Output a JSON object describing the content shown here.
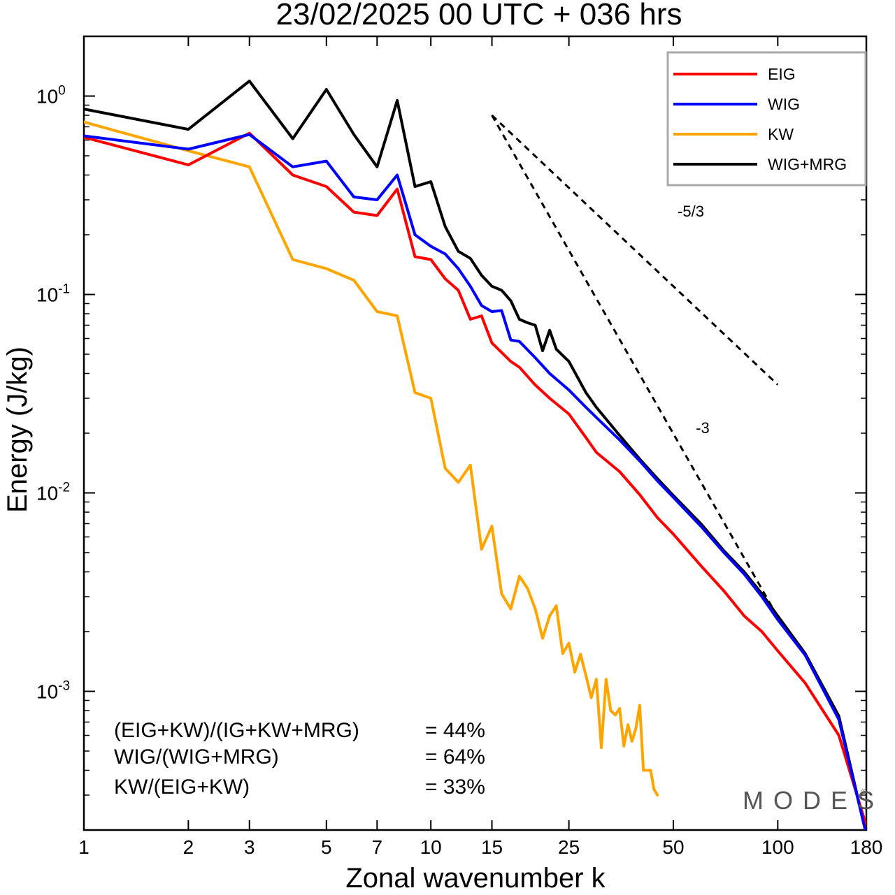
{
  "chart_data": {
    "type": "line",
    "title": "23/02/2025  00 UTC  + 036 hrs",
    "xlabel": "Zonal wavenumber k",
    "ylabel": "Energy (J/kg)",
    "xscale": "log",
    "yscale": "log",
    "xlim": [
      1,
      180
    ],
    "ylim": [
      0.0002,
      2.0
    ],
    "xticks": [
      1,
      2,
      3,
      5,
      7,
      10,
      15,
      25,
      50,
      100,
      180
    ],
    "yticks": [
      {
        "value": 1,
        "base": "10",
        "exp": "0"
      },
      {
        "value": 0.1,
        "base": "10",
        "exp": "-1"
      },
      {
        "value": 0.01,
        "base": "10",
        "exp": "-2"
      },
      {
        "value": 0.001,
        "base": "10",
        "exp": "-3"
      }
    ],
    "legend_position": "top-right",
    "series": [
      {
        "name": "EIG",
        "color": "#ff0000",
        "x": [
          1,
          2,
          3,
          4,
          5,
          6,
          7,
          8,
          9,
          10,
          11,
          12,
          13,
          14,
          15,
          17,
          18,
          20,
          22,
          25,
          28,
          30,
          35,
          40,
          45,
          50,
          60,
          70,
          80,
          90,
          100,
          120,
          150,
          180
        ],
        "y": [
          0.62,
          0.45,
          0.65,
          0.4,
          0.35,
          0.26,
          0.25,
          0.34,
          0.155,
          0.15,
          0.12,
          0.105,
          0.075,
          0.078,
          0.057,
          0.046,
          0.043,
          0.035,
          0.03,
          0.025,
          0.019,
          0.016,
          0.0128,
          0.0098,
          0.0075,
          0.0062,
          0.0043,
          0.0032,
          0.0024,
          0.002,
          0.0016,
          0.0011,
          0.0006,
          0.00021
        ]
      },
      {
        "name": "WIG",
        "color": "#0000ff",
        "x": [
          1,
          2,
          3,
          4,
          5,
          6,
          7,
          8,
          9,
          10,
          11,
          12,
          13,
          14,
          15,
          16,
          17,
          18,
          20,
          22,
          25,
          28,
          30,
          35,
          40,
          45,
          50,
          60,
          70,
          80,
          90,
          100,
          120,
          150,
          180
        ],
        "y": [
          0.63,
          0.54,
          0.64,
          0.44,
          0.47,
          0.31,
          0.3,
          0.4,
          0.2,
          0.175,
          0.16,
          0.135,
          0.11,
          0.088,
          0.082,
          0.083,
          0.059,
          0.058,
          0.048,
          0.04,
          0.033,
          0.027,
          0.024,
          0.0185,
          0.0145,
          0.0115,
          0.0095,
          0.0068,
          0.005,
          0.0039,
          0.003,
          0.0023,
          0.00152,
          0.00072,
          0.00019
        ]
      },
      {
        "name": "KW",
        "color": "#ffa500",
        "x": [
          1,
          2,
          3,
          4,
          5,
          6,
          7,
          8,
          9,
          10,
          11,
          12,
          13,
          14,
          15,
          16,
          17,
          18,
          19,
          20,
          21,
          22,
          23,
          24,
          25,
          26,
          27,
          28,
          29,
          30,
          31,
          32,
          33,
          34,
          35,
          36,
          37,
          38,
          39,
          40,
          41,
          42,
          43,
          44,
          45
        ],
        "y": [
          0.74,
          0.53,
          0.44,
          0.15,
          0.135,
          0.118,
          0.082,
          0.078,
          0.032,
          0.03,
          0.0133,
          0.0113,
          0.0138,
          0.0052,
          0.0068,
          0.0031,
          0.0026,
          0.0038,
          0.0033,
          0.0026,
          0.00185,
          0.0024,
          0.0027,
          0.00155,
          0.00175,
          0.00125,
          0.00154,
          0.0012,
          0.00093,
          0.00115,
          0.00052,
          0.00115,
          0.0008,
          0.00076,
          0.00082,
          0.00053,
          0.00068,
          0.00056,
          0.00065,
          0.00085,
          0.0004,
          0.0004,
          0.0004,
          0.00032,
          0.0003
        ]
      },
      {
        "name": "WIG+MRG",
        "color": "#000000",
        "x": [
          1,
          2,
          3,
          4,
          5,
          6,
          7,
          8,
          9,
          10,
          11,
          12,
          13,
          14,
          15,
          16,
          17,
          18,
          19,
          20,
          21,
          22,
          23,
          25,
          28,
          30,
          35,
          40,
          45,
          50,
          60,
          70,
          80,
          90,
          100,
          120,
          150,
          180
        ],
        "y": [
          0.86,
          0.68,
          1.19,
          0.61,
          1.08,
          0.64,
          0.44,
          0.95,
          0.35,
          0.37,
          0.22,
          0.165,
          0.152,
          0.125,
          0.11,
          0.105,
          0.093,
          0.075,
          0.072,
          0.07,
          0.052,
          0.066,
          0.053,
          0.046,
          0.032,
          0.027,
          0.0195,
          0.0148,
          0.0118,
          0.0097,
          0.007,
          0.0051,
          0.004,
          0.0031,
          0.0024,
          0.00155,
          0.00075,
          0.00019
        ]
      }
    ],
    "reference_lines": [
      {
        "label": "-5/3",
        "x": [
          15,
          100
        ],
        "y": [
          0.8,
          0.0351
        ]
      },
      {
        "label": "-3",
        "x": [
          15,
          100
        ],
        "y": [
          0.8,
          0.00237
        ]
      }
    ],
    "ratios": [
      {
        "label": "(EIG+KW)/(IG+KW+MRG)",
        "value": "= 44%"
      },
      {
        "label": "WIG/(WIG+MRG)",
        "value": "= 64%"
      },
      {
        "label": "KW/(EIG+KW)",
        "value": "= 33%"
      }
    ],
    "watermark": "MODES",
    "copyright": "©"
  }
}
